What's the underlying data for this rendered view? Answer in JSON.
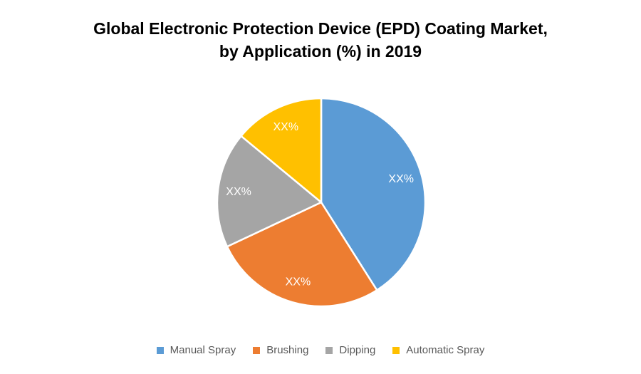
{
  "header": {
    "title_line1": "Global Electronic Protection Device (EPD) Coating Market,",
    "title_line2": "by Application (%) in 2019"
  },
  "chart_data": {
    "type": "pie",
    "title": "Global Electronic Protection Device (EPD) Coating Market, by Application (%) in 2019",
    "categories": [
      "Manual Spray",
      "Brushing",
      "Dipping",
      "Automatic Spray"
    ],
    "values": [
      41,
      27,
      18,
      14
    ],
    "value_labels": [
      "XX%",
      "XX%",
      "XX%",
      "XX%"
    ],
    "colors": [
      "#5B9BD5",
      "#ED7D31",
      "#A5A5A5",
      "#FFC000"
    ],
    "start_angle_deg": 0,
    "direction": "clockwise",
    "slice_separator_color": "#FFFFFF",
    "data_label_color": "#FFFFFF",
    "legend_position": "bottom",
    "legend_text_color": "#595959"
  }
}
